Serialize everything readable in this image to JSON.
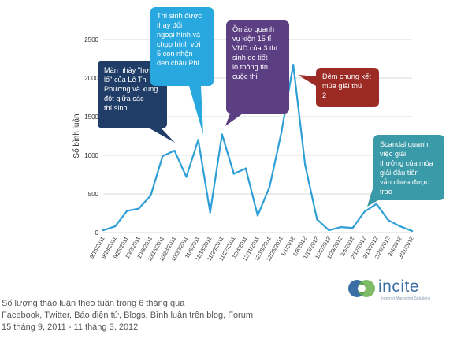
{
  "chart_data": {
    "type": "line",
    "title": "",
    "xlabel": "",
    "ylabel": "Số bình luận",
    "ylim": [
      0,
      2500
    ],
    "yticks": [
      0,
      500,
      1000,
      1500,
      2000,
      2500
    ],
    "grid": true,
    "x": [
      "9/15/2011",
      "9/18/2011",
      "9/25/2011",
      "10/2/2011",
      "10/9/2011",
      "10/16/2011",
      "10/23/2011",
      "10/30/2011",
      "11/6/2011",
      "11/13/2011",
      "11/20/2011",
      "11/27/2011",
      "12/4/2011",
      "12/11/2011",
      "12/18/2011",
      "12/25/2011",
      "1/1/2012",
      "1/8/2012",
      "1/15/2012",
      "1/22/2012",
      "1/29/2012",
      "2/5/2012",
      "2/12/2012",
      "2/19/2012",
      "2/26/2012",
      "3/4/2012",
      "3/11/2012"
    ],
    "values": [
      30,
      80,
      280,
      310,
      480,
      990,
      1060,
      720,
      1200,
      260,
      1270,
      760,
      830,
      220,
      590,
      1300,
      2170,
      870,
      170,
      30,
      70,
      60,
      270,
      370,
      160,
      80,
      20
    ],
    "color": "#2e9fd6",
    "annotations": [
      {
        "text": "Màn nhảy \"hơi lố\" của Lê Thị Phương và xung đột giữa các thí sinh",
        "color": "#1f3d66",
        "x_index": 5
      },
      {
        "text": "Thí sinh được thay đổi ngoại hình và chụp hình với 5 con nhện đen châu Phi",
        "color": "#29a8e0",
        "x_index": 8
      },
      {
        "text": "Ồn ào quanh vụ kiện 15 tỉ VND của 3 thí sinh do tiết lộ thông tin cuộc thi",
        "color": "#5b3f82",
        "x_index": 10
      },
      {
        "text": "Đêm chung kết mùa giải thứ 2",
        "color": "#9c2a25",
        "x_index": 16
      },
      {
        "text": "Scandal quanh việc giải thưởng của mùa giải đầu tiên vẫn chưa được trao",
        "color": "#3a9aa8",
        "x_index": 23
      }
    ]
  },
  "footer": {
    "line1": "Số lượng thảo luận theo tuần trong 6 tháng qua",
    "line2": "Facebook, Twitter, Báo điện tử, Blogs, Bình luận trên blog, Forum",
    "line3": "15 tháng 9, 2011 - 11 tháng 3, 2012"
  },
  "logo": {
    "text": "incite",
    "sub": "Internet Marketing Solutions"
  }
}
